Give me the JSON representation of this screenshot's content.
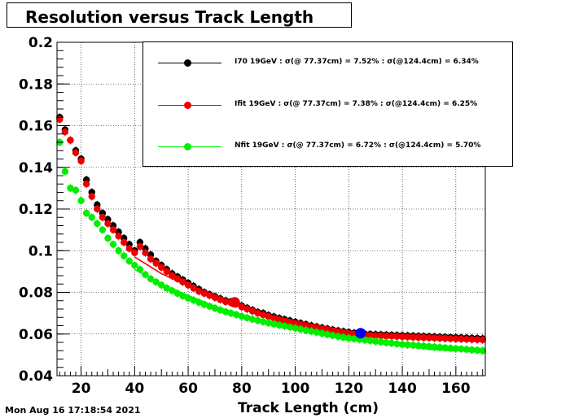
{
  "chart_data": {
    "type": "scatter",
    "title": "Resolution versus Track Length",
    "xlabel": "Track Length (cm)",
    "ylabel": "",
    "xlim": [
      11,
      171
    ],
    "ylim": [
      0.04,
      0.2
    ],
    "xticks": [
      "20",
      "40",
      "60",
      "80",
      "100",
      "120",
      "140",
      "160"
    ],
    "yticks": [
      "0.04",
      "0.06",
      "0.08",
      "0.1",
      "0.12",
      "0.14",
      "0.16",
      "0.18",
      "0.2"
    ],
    "grid": true,
    "legend_position": "top-right",
    "series": [
      {
        "name": "I70 19GeV : σ(@ 77.37cm) =  7.52% : σ(@124.4cm) =  6.34%",
        "color": "#000000",
        "x": [
          12,
          14,
          16,
          18,
          20,
          22,
          24,
          26,
          28,
          30,
          32,
          34,
          36,
          38,
          40,
          42,
          44,
          46,
          48,
          50,
          52,
          54,
          56,
          58,
          60,
          62,
          64,
          66,
          68,
          70,
          72,
          74,
          76,
          78,
          80,
          82,
          84,
          86,
          88,
          90,
          92,
          94,
          96,
          98,
          100,
          102,
          104,
          106,
          108,
          110,
          112,
          114,
          116,
          118,
          120,
          122,
          124,
          126,
          128,
          130,
          132,
          134,
          136,
          138,
          140,
          142,
          144,
          146,
          148,
          150,
          152,
          154,
          156,
          158,
          160,
          162,
          164,
          166,
          168,
          170
        ],
        "y": [
          0.164,
          0.158,
          0.153,
          0.148,
          0.144,
          0.134,
          0.128,
          0.122,
          0.118,
          0.115,
          0.112,
          0.109,
          0.106,
          0.103,
          0.1,
          0.104,
          0.101,
          0.098,
          0.095,
          0.093,
          0.091,
          0.089,
          0.0875,
          0.086,
          0.0845,
          0.083,
          0.0815,
          0.08,
          0.079,
          0.078,
          0.077,
          0.076,
          0.0755,
          0.075,
          0.0735,
          0.0725,
          0.0715,
          0.0705,
          0.07,
          0.069,
          0.0683,
          0.0676,
          0.067,
          0.0664,
          0.0658,
          0.0652,
          0.0646,
          0.064,
          0.0635,
          0.063,
          0.0625,
          0.062,
          0.0616,
          0.0612,
          0.0608,
          0.0605,
          0.0602,
          0.06,
          0.0599,
          0.0598,
          0.0597,
          0.0596,
          0.0595,
          0.0594,
          0.0593,
          0.0592,
          0.0591,
          0.059,
          0.0589,
          0.0588,
          0.0587,
          0.0586,
          0.0585,
          0.0584,
          0.0583,
          0.0582,
          0.0581,
          0.058,
          0.0579,
          0.0578
        ],
        "fit_x": [],
        "fit_y": []
      },
      {
        "name": "Ifit 19GeV : σ(@ 77.37cm) =  7.38% : σ(@124.4cm) =  6.25%",
        "color": "#ee0000",
        "x": [
          12,
          14,
          16,
          18,
          20,
          22,
          24,
          26,
          28,
          30,
          32,
          34,
          36,
          38,
          40,
          42,
          44,
          46,
          48,
          50,
          52,
          54,
          56,
          58,
          60,
          62,
          64,
          66,
          68,
          70,
          72,
          74,
          76,
          78,
          80,
          82,
          84,
          86,
          88,
          90,
          92,
          94,
          96,
          98,
          100,
          102,
          104,
          106,
          108,
          110,
          112,
          114,
          116,
          118,
          120,
          122,
          124,
          126,
          128,
          130,
          132,
          134,
          136,
          138,
          140,
          142,
          144,
          146,
          148,
          150,
          152,
          154,
          156,
          158,
          160,
          162,
          164,
          166,
          168,
          170
        ],
        "y": [
          0.163,
          0.157,
          0.153,
          0.147,
          0.143,
          0.132,
          0.126,
          0.12,
          0.116,
          0.113,
          0.11,
          0.107,
          0.104,
          0.101,
          0.099,
          0.102,
          0.099,
          0.096,
          0.094,
          0.092,
          0.09,
          0.088,
          0.0865,
          0.085,
          0.0835,
          0.082,
          0.0805,
          0.0795,
          0.0785,
          0.0775,
          0.0765,
          0.0755,
          0.075,
          0.0745,
          0.073,
          0.072,
          0.071,
          0.07,
          0.0692,
          0.0684,
          0.0676,
          0.0668,
          0.0661,
          0.0654,
          0.0648,
          0.0642,
          0.0636,
          0.0631,
          0.0626,
          0.0621,
          0.0616,
          0.0612,
          0.0608,
          0.0604,
          0.06,
          0.0598,
          0.0596,
          0.0594,
          0.0593,
          0.0592,
          0.0591,
          0.059,
          0.0589,
          0.0588,
          0.0587,
          0.0586,
          0.0585,
          0.0584,
          0.0583,
          0.0582,
          0.0581,
          0.058,
          0.0579,
          0.0578,
          0.0577,
          0.0576,
          0.0575,
          0.0574,
          0.0573,
          0.0572
        ],
        "fit_x": [
          40,
          50,
          60,
          70,
          80,
          90,
          100,
          110,
          120,
          130,
          140,
          150,
          160
        ],
        "fit_y": [
          0.097,
          0.089,
          0.083,
          0.0775,
          0.0728,
          0.0692,
          0.0664,
          0.0638,
          0.0614,
          0.0601,
          0.0593,
          0.0586,
          0.058
        ]
      },
      {
        "name": "Nfit 19GeV : σ(@ 77.37cm) =  6.72% : σ(@124.4cm) =  5.70%",
        "color": "#00ee00",
        "x": [
          12,
          14,
          16,
          18,
          20,
          22,
          24,
          26,
          28,
          30,
          32,
          34,
          36,
          38,
          40,
          42,
          44,
          46,
          48,
          50,
          52,
          54,
          56,
          58,
          60,
          62,
          64,
          66,
          68,
          70,
          72,
          74,
          76,
          78,
          80,
          82,
          84,
          86,
          88,
          90,
          92,
          94,
          96,
          98,
          100,
          102,
          104,
          106,
          108,
          110,
          112,
          114,
          116,
          118,
          120,
          122,
          124,
          126,
          128,
          130,
          132,
          134,
          136,
          138,
          140,
          142,
          144,
          146,
          148,
          150,
          152,
          154,
          156,
          158,
          160,
          162,
          164,
          166,
          168,
          170
        ],
        "y": [
          0.152,
          0.138,
          0.13,
          0.129,
          0.124,
          0.118,
          0.116,
          0.113,
          0.11,
          0.106,
          0.103,
          0.1,
          0.0975,
          0.095,
          0.093,
          0.091,
          0.0885,
          0.0865,
          0.085,
          0.0835,
          0.082,
          0.0808,
          0.0795,
          0.0783,
          0.0772,
          0.0762,
          0.0752,
          0.0742,
          0.0733,
          0.0724,
          0.0715,
          0.0707,
          0.07,
          0.0693,
          0.0685,
          0.0678,
          0.0671,
          0.0665,
          0.0659,
          0.0653,
          0.0648,
          0.0643,
          0.0638,
          0.0633,
          0.0628,
          0.0623,
          0.0618,
          0.0613,
          0.0608,
          0.0603,
          0.0598,
          0.0593,
          0.0588,
          0.0584,
          0.058,
          0.0577,
          0.0574,
          0.0571,
          0.0568,
          0.0565,
          0.0562,
          0.0559,
          0.0556,
          0.0553,
          0.055,
          0.0548,
          0.0546,
          0.0544,
          0.0542,
          0.054,
          0.0538,
          0.0536,
          0.0534,
          0.0532,
          0.053,
          0.0528,
          0.0526,
          0.0524,
          0.0522,
          0.052
        ],
        "fit_x": [
          40,
          50,
          60,
          70,
          80,
          90,
          100,
          110,
          120,
          130,
          140,
          150,
          160
        ],
        "fit_y": [
          0.091,
          0.084,
          0.0785,
          0.0733,
          0.0693,
          0.0657,
          0.063,
          0.0604,
          0.0585,
          0.0567,
          0.0545,
          0.0527,
          0.0518
        ]
      }
    ],
    "highlight_points": [
      {
        "x": 77.4,
        "y": 0.0752,
        "color": "#ee0000"
      },
      {
        "x": 124.4,
        "y": 0.0604,
        "color": "#0000ee"
      }
    ]
  },
  "footer": {
    "timestamp": "Mon Aug 16 17:18:54 2021"
  }
}
